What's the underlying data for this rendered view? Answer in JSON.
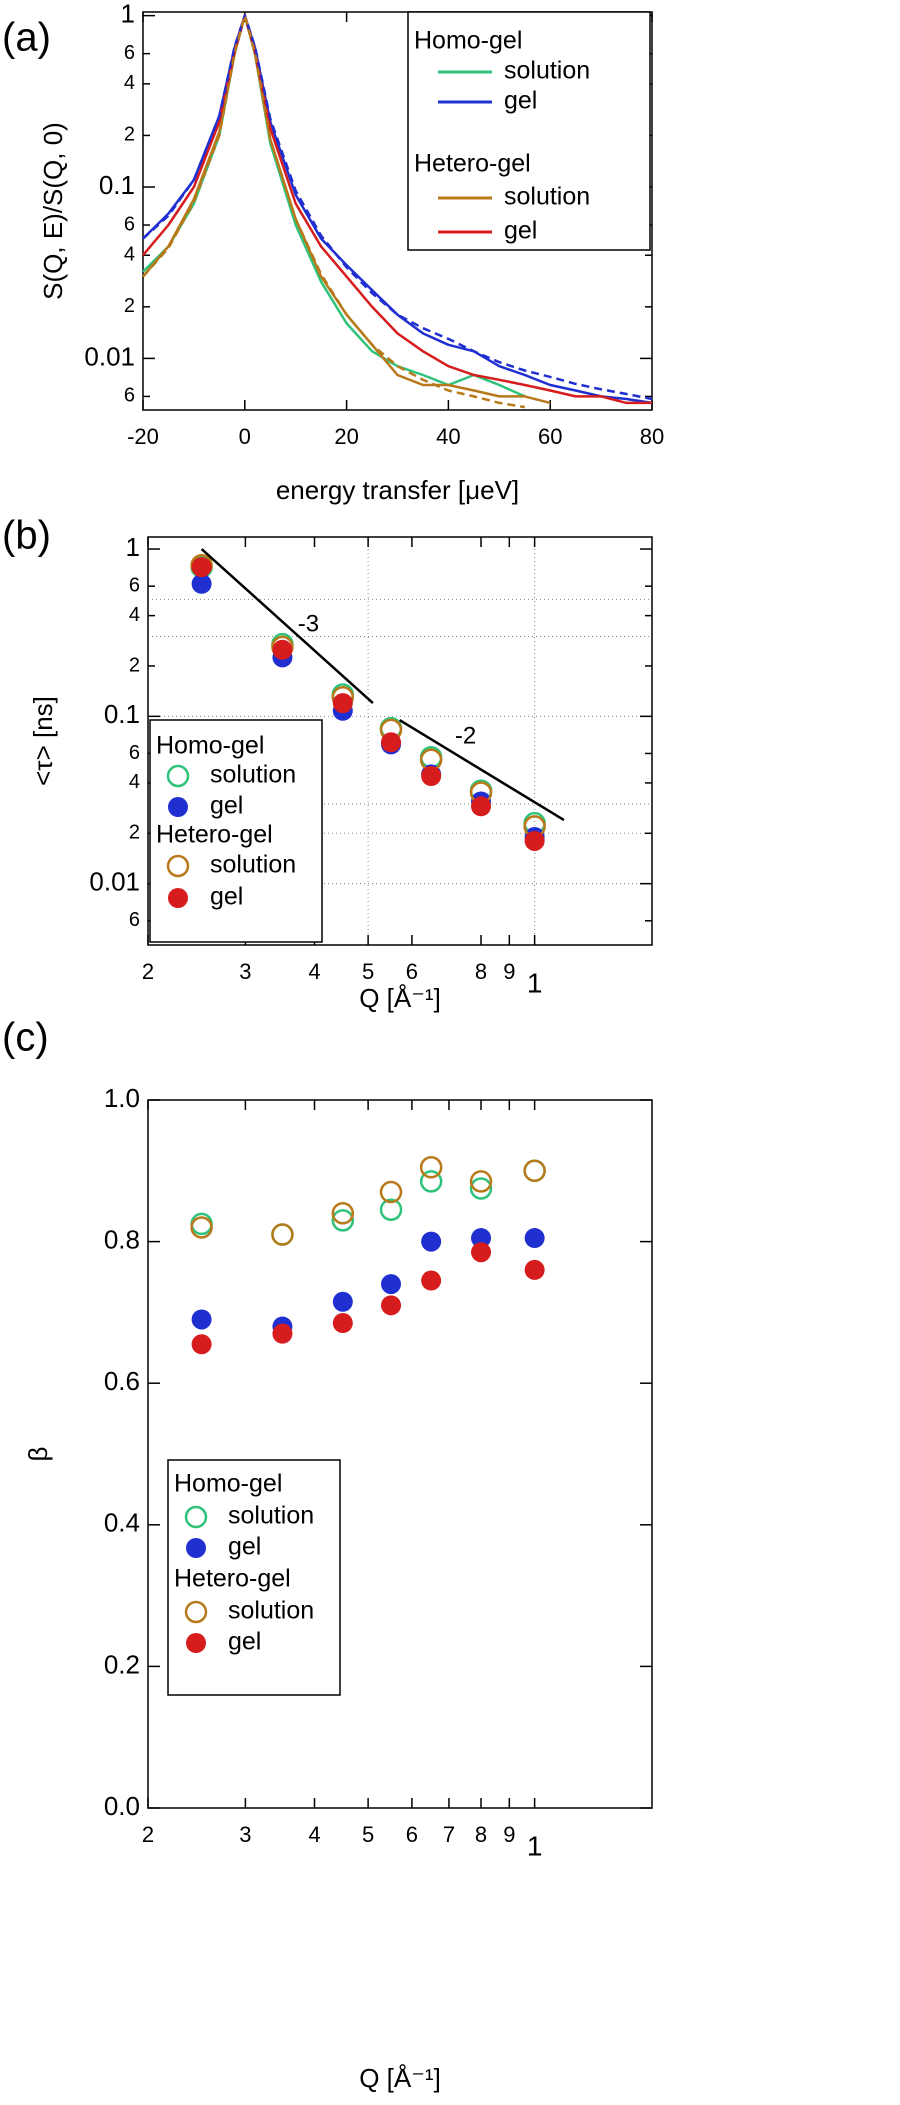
{
  "chart_data": [
    {
      "type": "line",
      "panel_label": "(a)",
      "xlabel": "energy transfer [μeV]",
      "ylabel": "S(Q, E)/S(Q, 0)",
      "xscale": "linear",
      "yscale": "log",
      "xlim": [
        -20,
        80
      ],
      "ylim": [
        0.005,
        1.05
      ],
      "xticks": [
        -20,
        0,
        20,
        40,
        60,
        80
      ],
      "yticks": [
        1,
        {
          "value": 0.6,
          "label": "6"
        },
        {
          "value": 0.4,
          "label": "4"
        },
        {
          "value": 0.2,
          "label": "2"
        },
        0.1,
        {
          "value": 0.06,
          "label": "6"
        },
        {
          "value": 0.04,
          "label": "4"
        },
        {
          "value": 0.02,
          "label": "2"
        },
        0.01,
        {
          "value": 0.006,
          "label": "6"
        }
      ],
      "legend_groups": [
        "Homo-gel",
        "Hetero-gel"
      ],
      "x": [
        -20,
        -15,
        -10,
        -5,
        -2,
        0,
        2,
        5,
        10,
        15,
        20,
        25,
        30,
        35,
        40,
        45,
        50,
        55,
        60,
        65,
        70,
        75,
        80
      ],
      "series": [
        {
          "name": "solution",
          "group": 0,
          "color": "#2fc27a",
          "values": [
            0.032,
            0.045,
            0.08,
            0.2,
            0.6,
            1.0,
            0.6,
            0.18,
            0.06,
            0.028,
            0.016,
            0.011,
            0.009,
            0.008,
            0.007,
            0.008,
            0.007,
            0.006,
            null,
            null,
            null,
            null,
            null
          ]
        },
        {
          "name": "gel",
          "group": 0,
          "color": "#1f2fd0",
          "values": [
            0.05,
            0.07,
            0.11,
            0.26,
            0.65,
            1.0,
            0.65,
            0.24,
            0.09,
            0.05,
            0.035,
            0.025,
            0.018,
            0.014,
            0.012,
            0.011,
            0.009,
            0.008,
            0.007,
            0.0065,
            0.006,
            0.0058,
            0.0055
          ]
        },
        {
          "name": "solution",
          "group": 1,
          "color": "#b8791a",
          "values": [
            0.03,
            0.045,
            0.085,
            0.21,
            0.6,
            1.0,
            0.6,
            0.19,
            0.065,
            0.03,
            0.018,
            0.012,
            0.008,
            0.007,
            0.007,
            0.0065,
            0.006,
            0.006,
            0.0055,
            null,
            null,
            null,
            null
          ]
        },
        {
          "name": "gel",
          "group": 1,
          "color": "#d61c1c",
          "values": [
            0.04,
            0.06,
            0.1,
            0.24,
            0.62,
            1.0,
            0.62,
            0.22,
            0.08,
            0.045,
            0.03,
            0.02,
            0.014,
            0.011,
            0.009,
            0.008,
            0.0075,
            0.007,
            0.0065,
            0.006,
            0.006,
            0.0055,
            0.0055
          ]
        }
      ],
      "fits": [
        {
          "color": "#1f2fd0",
          "values": [
            0.05,
            0.068,
            0.11,
            0.26,
            0.66,
            1.0,
            0.66,
            0.25,
            0.095,
            0.052,
            0.034,
            0.024,
            0.018,
            0.015,
            0.013,
            0.011,
            0.0095,
            0.0085,
            0.0078,
            0.0071,
            0.0066,
            0.0062,
            0.0058
          ]
        },
        {
          "color": "#b8791a",
          "values": [
            0.03,
            0.044,
            0.082,
            0.2,
            0.6,
            1.0,
            0.6,
            0.19,
            0.065,
            0.031,
            0.018,
            0.012,
            0.009,
            0.0075,
            0.0065,
            0.006,
            0.0055,
            0.0052,
            null,
            null,
            null,
            null,
            null
          ]
        }
      ]
    },
    {
      "type": "scatter",
      "panel_label": "(b)",
      "xlabel": "Q [Å⁻¹]",
      "ylabel": "<τ> [ns]",
      "xscale": "log",
      "yscale": "log",
      "xlim": [
        0.2,
        1.63
      ],
      "ylim": [
        0.0043,
        1.18
      ],
      "xticks": [
        {
          "value": 0.2,
          "label": "2"
        },
        {
          "value": 0.3,
          "label": "3"
        },
        {
          "value": 0.4,
          "label": "4"
        },
        {
          "value": 0.5,
          "label": "5"
        },
        {
          "value": 0.6,
          "label": "6"
        },
        {
          "value": 0.8,
          "label": "8"
        },
        {
          "value": 0.9,
          "label": "9"
        },
        1
      ],
      "yticks": [
        1,
        {
          "value": 0.6,
          "label": "6"
        },
        {
          "value": 0.4,
          "label": "4"
        },
        {
          "value": 0.2,
          "label": "2"
        },
        0.1,
        {
          "value": 0.06,
          "label": "6"
        },
        {
          "value": 0.04,
          "label": "4"
        },
        {
          "value": 0.02,
          "label": "2"
        },
        0.01,
        {
          "value": 0.006,
          "label": "6"
        }
      ],
      "grid_x": [
        0.5,
        1
      ],
      "grid_y": [
        0.5,
        0.3,
        0.1,
        0.03,
        0.02,
        0.01
      ],
      "legend_groups": [
        "Homo-gel",
        "Hetero-gel"
      ],
      "x": [
        0.25,
        0.35,
        0.45,
        0.55,
        0.65,
        0.8,
        1.0
      ],
      "series": [
        {
          "name": "solution",
          "group": 0,
          "color": "#2fc27a",
          "marker": "open",
          "values": [
            0.78,
            0.27,
            0.135,
            0.085,
            0.057,
            0.036,
            0.023
          ]
        },
        {
          "name": "gel",
          "group": 0,
          "color": "#1f2fd0",
          "marker": "filled",
          "values": [
            0.62,
            0.225,
            0.108,
            0.068,
            0.045,
            0.031,
            0.019
          ]
        },
        {
          "name": "solution",
          "group": 1,
          "color": "#b8791a",
          "marker": "open",
          "values": [
            0.8,
            0.26,
            0.13,
            0.083,
            0.055,
            0.035,
            0.022
          ]
        },
        {
          "name": "gel",
          "group": 1,
          "color": "#d61c1c",
          "marker": "filled",
          "values": [
            0.78,
            0.25,
            0.12,
            0.07,
            0.044,
            0.029,
            0.018
          ]
        }
      ],
      "guides": [
        {
          "label": "-3",
          "x": [
            0.25,
            0.51
          ],
          "y": [
            1.0,
            0.12
          ],
          "label_x": 0.39,
          "label_y": 0.35
        },
        {
          "label": "-2",
          "x": [
            0.57,
            1.13
          ],
          "y": [
            0.095,
            0.024
          ],
          "label_x": 0.75,
          "label_y": 0.075
        }
      ]
    },
    {
      "type": "scatter",
      "panel_label": "(c)",
      "xlabel": "Q [Å⁻¹]",
      "ylabel": "β",
      "xscale": "log",
      "yscale": "linear",
      "xlim": [
        0.2,
        1.63
      ],
      "ylim": [
        0,
        1.0
      ],
      "xticks": [
        {
          "value": 0.2,
          "label": "2"
        },
        {
          "value": 0.3,
          "label": "3"
        },
        {
          "value": 0.4,
          "label": "4"
        },
        {
          "value": 0.5,
          "label": "5"
        },
        {
          "value": 0.6,
          "label": "6"
        },
        {
          "value": 0.7,
          "label": "7"
        },
        {
          "value": 0.8,
          "label": "8"
        },
        {
          "value": 0.9,
          "label": "9"
        },
        1
      ],
      "yticks": [
        {
          "value": 0,
          "label": "0.0"
        },
        0.2,
        0.4,
        0.6,
        0.8,
        {
          "value": 1.0,
          "label": "1.0"
        }
      ],
      "legend_groups": [
        "Homo-gel",
        "Hetero-gel"
      ],
      "x": [
        0.25,
        0.35,
        0.45,
        0.55,
        0.65,
        0.8,
        1.0
      ],
      "series": [
        {
          "name": "solution",
          "group": 0,
          "color": "#2fc27a",
          "marker": "open",
          "values": [
            0.825,
            0.81,
            0.83,
            0.845,
            0.885,
            0.875,
            0.9
          ]
        },
        {
          "name": "gel",
          "group": 0,
          "color": "#1f2fd0",
          "marker": "filled",
          "values": [
            0.69,
            0.68,
            0.715,
            0.74,
            0.8,
            0.805,
            0.805
          ]
        },
        {
          "name": "solution",
          "group": 1,
          "color": "#b8791a",
          "marker": "open",
          "values": [
            0.82,
            0.81,
            0.84,
            0.87,
            0.905,
            0.885,
            0.9
          ]
        },
        {
          "name": "gel",
          "group": 1,
          "color": "#d61c1c",
          "marker": "filled",
          "values": [
            0.655,
            0.67,
            0.685,
            0.71,
            0.745,
            0.785,
            0.76
          ]
        }
      ]
    }
  ]
}
